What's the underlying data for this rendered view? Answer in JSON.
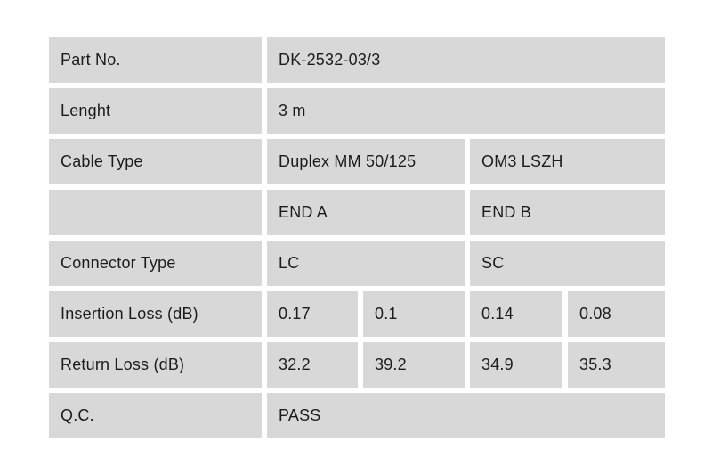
{
  "page": {
    "background_color": "#ffffff",
    "cell_color": "#d8d8d8",
    "text_color": "#1c1c1c"
  },
  "table": {
    "rows": [
      {
        "label": "Part No.",
        "values": [
          "DK-2532-03/3"
        ]
      },
      {
        "label": "Lenght",
        "values": [
          "3 m"
        ]
      },
      {
        "label": "Cable Type",
        "values": [
          "Duplex MM 50/125",
          "OM3 LSZH"
        ]
      },
      {
        "label": "",
        "values": [
          "END A",
          "END B"
        ]
      },
      {
        "label": "Connector Type",
        "values": [
          "LC",
          "SC"
        ]
      },
      {
        "label": "Insertion Loss (dB)",
        "values": [
          "0.17",
          "0.1",
          "0.14",
          "0.08"
        ]
      },
      {
        "label": "Return Loss (dB)",
        "values": [
          "32.2",
          "39.2",
          "34.9",
          "35.3"
        ]
      },
      {
        "label": "Q.C.",
        "values": [
          "PASS"
        ]
      }
    ]
  }
}
